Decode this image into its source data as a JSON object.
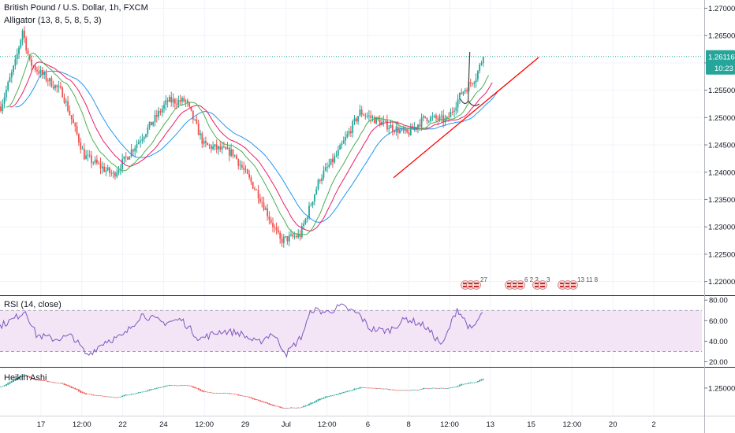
{
  "symbol_title": "British Pound / U.S. Dollar, 1h, FXCM",
  "indicator_label": "Alligator (13, 8, 5, 8, 5, 3)",
  "rsi_label": "RSI (14, close)",
  "ha_label": "Heikin Ashi",
  "price_badge": {
    "value": "1.26116",
    "countdown": "10:23"
  },
  "colors": {
    "up": "#26a69a",
    "down": "#ef5350",
    "jaw": "#2196f3",
    "teeth": "#e91e63",
    "lips": "#4caf50",
    "rsi_line": "#7e57c2",
    "rsi_band": "#f3e5f5",
    "trendline": "#ff0000",
    "annotation": "#444444",
    "price_line": "#26a69a",
    "axis_text": "#131722",
    "grid": "#f0f3fa",
    "separator": "#2a2e39"
  },
  "event_markers": [
    {
      "label": "27",
      "count": 3
    },
    {
      "label": "6 2 2",
      "count": 3
    },
    {
      "label": "3",
      "count": 2
    },
    {
      "label": "13 11 8",
      "count": 3
    }
  ],
  "chart_data": [
    {
      "type": "candlestick",
      "title": "British Pound / U.S. Dollar, 1h, FXCM",
      "y_ticks": [
        "1.27000",
        "1.26500",
        "1.26000",
        "1.25500",
        "1.25000",
        "1.24500",
        "1.24000",
        "1.23500",
        "1.23000",
        "1.22500",
        "1.22000"
      ],
      "x_ticks": [
        "17",
        "12:00",
        "22",
        "24",
        "12:00",
        "29",
        "Jul",
        "12:00",
        "6",
        "8",
        "12:00",
        "13",
        "15",
        "12:00",
        "20",
        "2"
      ],
      "ylim": [
        1.2175,
        1.2715
      ],
      "last_price": 1.26116,
      "price_path": [
        {
          "bar": 0,
          "price": 1.252
        },
        {
          "bar": 8,
          "price": 1.26
        },
        {
          "bar": 12,
          "price": 1.266
        },
        {
          "bar": 16,
          "price": 1.26
        },
        {
          "bar": 24,
          "price": 1.2575
        },
        {
          "bar": 34,
          "price": 1.2545
        },
        {
          "bar": 46,
          "price": 1.243
        },
        {
          "bar": 62,
          "price": 1.2395
        },
        {
          "bar": 80,
          "price": 1.2475
        },
        {
          "bar": 92,
          "price": 1.253
        },
        {
          "bar": 102,
          "price": 1.253
        },
        {
          "bar": 112,
          "price": 1.245
        },
        {
          "bar": 128,
          "price": 1.2435
        },
        {
          "bar": 142,
          "price": 1.236
        },
        {
          "bar": 154,
          "price": 1.2275
        },
        {
          "bar": 165,
          "price": 1.2285
        },
        {
          "bar": 176,
          "price": 1.239
        },
        {
          "bar": 185,
          "price": 1.243
        },
        {
          "bar": 198,
          "price": 1.251
        },
        {
          "bar": 210,
          "price": 1.249
        },
        {
          "bar": 224,
          "price": 1.247
        },
        {
          "bar": 234,
          "price": 1.25
        },
        {
          "bar": 246,
          "price": 1.2495
        },
        {
          "bar": 254,
          "price": 1.2545
        },
        {
          "bar": 262,
          "price": 1.2575
        },
        {
          "bar": 266,
          "price": 1.2612
        }
      ],
      "alligator": {
        "jaw_period": 13,
        "teeth_period": 8,
        "lips_period": 5,
        "jaw_shift": 8,
        "teeth_shift": 5,
        "lips_shift": 3
      },
      "trendline": {
        "start": {
          "bar": 217,
          "price": 1.239
        },
        "end": {
          "bar": 297,
          "price": 1.261
        }
      },
      "annotation": "handwritten arrow pointing down after the top"
    },
    {
      "type": "line",
      "title": "RSI (14, close)",
      "y_ticks": [
        "80.00",
        "60.00",
        "40.00",
        "20.00"
      ],
      "ylim": [
        15,
        84
      ],
      "band": [
        30,
        70
      ],
      "series": [
        {
          "name": "RSI",
          "points": [
            {
              "bar": 0,
              "value": 55
            },
            {
              "bar": 8,
              "value": 62
            },
            {
              "bar": 14,
              "value": 70
            },
            {
              "bar": 20,
              "value": 46
            },
            {
              "bar": 30,
              "value": 42
            },
            {
              "bar": 40,
              "value": 45
            },
            {
              "bar": 48,
              "value": 26
            },
            {
              "bar": 58,
              "value": 40
            },
            {
              "bar": 68,
              "value": 45
            },
            {
              "bar": 78,
              "value": 66
            },
            {
              "bar": 90,
              "value": 58
            },
            {
              "bar": 100,
              "value": 61
            },
            {
              "bar": 110,
              "value": 42
            },
            {
              "bar": 122,
              "value": 50
            },
            {
              "bar": 132,
              "value": 48
            },
            {
              "bar": 142,
              "value": 38
            },
            {
              "bar": 150,
              "value": 48
            },
            {
              "bar": 158,
              "value": 28
            },
            {
              "bar": 166,
              "value": 44
            },
            {
              "bar": 172,
              "value": 71
            },
            {
              "bar": 180,
              "value": 68
            },
            {
              "bar": 188,
              "value": 74
            },
            {
              "bar": 198,
              "value": 66
            },
            {
              "bar": 204,
              "value": 52
            },
            {
              "bar": 214,
              "value": 50
            },
            {
              "bar": 224,
              "value": 62
            },
            {
              "bar": 234,
              "value": 55
            },
            {
              "bar": 244,
              "value": 36
            },
            {
              "bar": 252,
              "value": 72
            },
            {
              "bar": 260,
              "value": 50
            },
            {
              "bar": 266,
              "value": 68
            }
          ]
        }
      ]
    },
    {
      "type": "candlestick",
      "title": "Heikin Ashi",
      "y_ticks": [
        "1.25000"
      ],
      "ylim": [
        1.2195,
        1.2725
      ]
    }
  ]
}
